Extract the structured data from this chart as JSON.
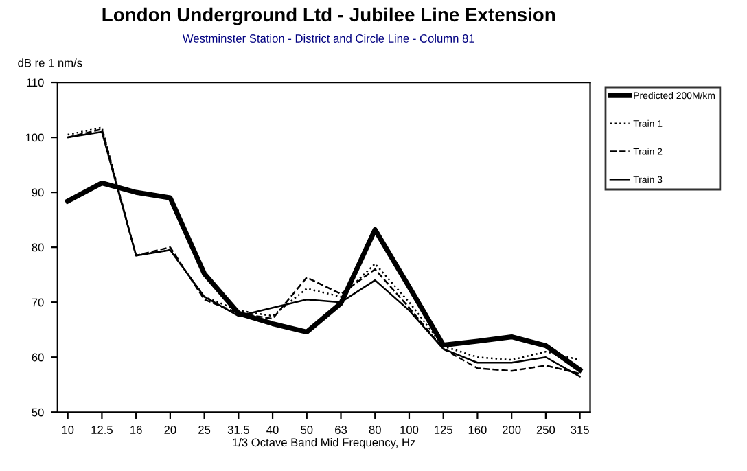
{
  "chart_data": {
    "type": "line",
    "title": "London Underground Ltd - Jubilee Line Extension",
    "subtitle": "Westminster Station - District and Circle Line - Column 81",
    "ylabel": "dB re 1 nm/s",
    "xlabel": "1/3 Octave Band Mid Frequency, Hz",
    "categories": [
      "10",
      "12.5",
      "16",
      "20",
      "25",
      "31.5",
      "40",
      "50",
      "63",
      "80",
      "100",
      "125",
      "160",
      "200",
      "250",
      "315"
    ],
    "series": [
      {
        "name": "Predicted 200M/km",
        "color": "#000000",
        "line_style": "solid",
        "values": [
          88.4,
          91.7,
          90,
          89,
          75.2,
          68,
          66.1,
          64.6,
          69.8,
          83.2,
          72.8,
          62.2,
          62.9,
          63.7,
          62.1,
          57.7
        ]
      },
      {
        "name": "Train 1",
        "color": "#000000",
        "line_style": "dotted",
        "values": [
          100.5,
          101.8,
          78.5,
          79.5,
          71,
          68.5,
          67.5,
          72.5,
          71,
          77,
          70,
          62,
          60,
          59.5,
          61,
          59.5
        ]
      },
      {
        "name": "Train 2",
        "color": "#000000",
        "line_style": "dashed",
        "values": [
          100,
          101.5,
          78.5,
          80,
          70.5,
          68,
          67,
          74.5,
          71.5,
          76,
          69,
          61.5,
          58,
          57.5,
          58.5,
          57
        ]
      },
      {
        "name": "Train 3",
        "color": "#000000",
        "line_style": "solid",
        "values": [
          100,
          101,
          78.5,
          79.5,
          71,
          67.5,
          69,
          70.5,
          70,
          74,
          68.5,
          61.5,
          59,
          59,
          60,
          56.5
        ]
      }
    ],
    "ylim": [
      50,
      110
    ],
    "yticks": [
      50,
      60,
      70,
      80,
      90,
      100,
      110
    ],
    "grid": false,
    "legend": "right",
    "marker": "none"
  }
}
